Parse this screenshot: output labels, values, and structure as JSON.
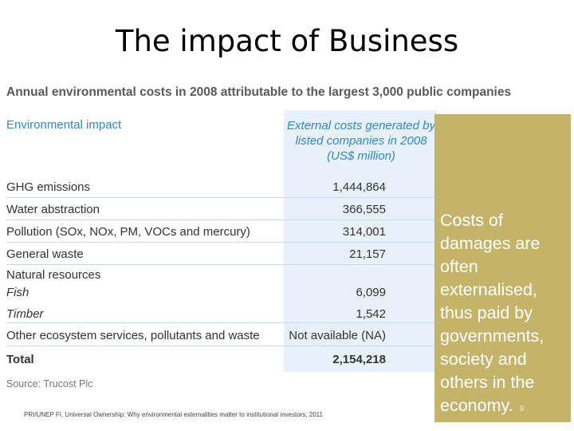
{
  "slide": {
    "title": "The impact of Business",
    "page_number": "9"
  },
  "table": {
    "caption": "Annual environmental costs in 2008 attributable to the largest 3,000 public companies",
    "header_left": "Environmental impact",
    "header_right": "External costs generated by listed companies in 2008 (US$ million)",
    "rows": [
      {
        "label": "GHG emissions",
        "value": "1,444,864"
      },
      {
        "label": "Water abstraction",
        "value": "366,555"
      },
      {
        "label": "Pollution (SOx, NOx, PM, VOCs and mercury)",
        "value": "314,001"
      },
      {
        "label": "General waste",
        "value": "21,157"
      },
      {
        "label": "Natural resources",
        "value": ""
      },
      {
        "label": "Fish",
        "value": "6,099"
      },
      {
        "label": "Timber",
        "value": "1,542"
      },
      {
        "label": "Other ecosystem services, pollutants and waste",
        "value": "Not available (NA)"
      },
      {
        "label": "Total",
        "value": "2,154,218"
      }
    ],
    "source": "Source: Trucost Plc"
  },
  "footnote": "PRI/UNEP FI, Universal Ownership: Why environmental externalities matter to institutional investors, 2011",
  "side_note": "Costs of damages are often externalised, thus paid by governments, society and others in the economy.",
  "colors": {
    "accent_blue": "#2f89c8",
    "table_highlight": "#e8f1f9",
    "side_box": "#c4b46a"
  }
}
